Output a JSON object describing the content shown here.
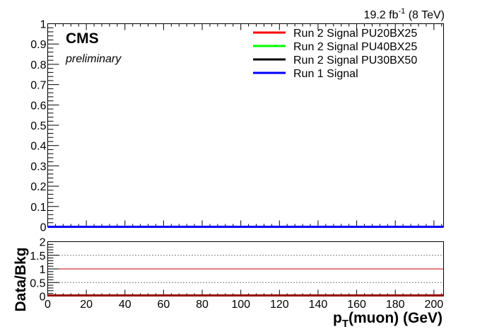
{
  "header": {
    "lumi_value": "19.2 fb",
    "lumi_exp": "-1",
    "lumi_energy": " (8 TeV)"
  },
  "labels": {
    "experiment": "CMS",
    "status": "preliminary"
  },
  "chart_data": [
    {
      "type": "line",
      "title": "",
      "xlabel": "",
      "ylabel": "",
      "xlim": [
        0,
        205
      ],
      "ylim": [
        0,
        1
      ],
      "x_ticks": [
        0,
        20,
        40,
        60,
        80,
        100,
        120,
        140,
        160,
        180,
        200
      ],
      "y_ticks": [
        "0",
        "0.1",
        "0.2",
        "0.3",
        "0.4",
        "0.5",
        "0.6",
        "0.7",
        "0.8",
        "0.9",
        "1"
      ],
      "legend_position": "top-right",
      "series": [
        {
          "name": "Run 2 Signal PU20BX25",
          "color": "#ff0000",
          "x": [
            0,
            205
          ],
          "y": [
            0,
            0
          ]
        },
        {
          "name": "Run 2 Signal PU40BX25",
          "color": "#00ff00",
          "x": [
            0,
            205
          ],
          "y": [
            0,
            0
          ]
        },
        {
          "name": "Run 2 Signal PU30BX50",
          "color": "#000000",
          "x": [
            0,
            205
          ],
          "y": [
            0,
            0
          ]
        },
        {
          "name": "Run 1 Signal",
          "color": "#0000ff",
          "x": [
            0,
            205
          ],
          "y": [
            0,
            0
          ]
        }
      ]
    },
    {
      "type": "line",
      "title": "",
      "xlabel_main": "p",
      "xlabel_sub": "T",
      "xlabel_rest": "(muon) (GeV)",
      "ylabel": "Data/Bkg",
      "xlim": [
        0,
        205
      ],
      "ylim": [
        0,
        2
      ],
      "x_ticks": [
        "0",
        "20",
        "40",
        "60",
        "80",
        "100",
        "120",
        "140",
        "160",
        "180",
        "200"
      ],
      "y_ticks": [
        "0",
        "0.5",
        "1",
        "1.5",
        "2"
      ],
      "dotted_gridlines": [
        0.5,
        1.5
      ],
      "reference_line": {
        "y": 1,
        "color": "#cc0000"
      },
      "series": [
        {
          "color": "#990000",
          "x": [
            0,
            205
          ],
          "y": [
            0,
            0
          ]
        }
      ]
    }
  ]
}
